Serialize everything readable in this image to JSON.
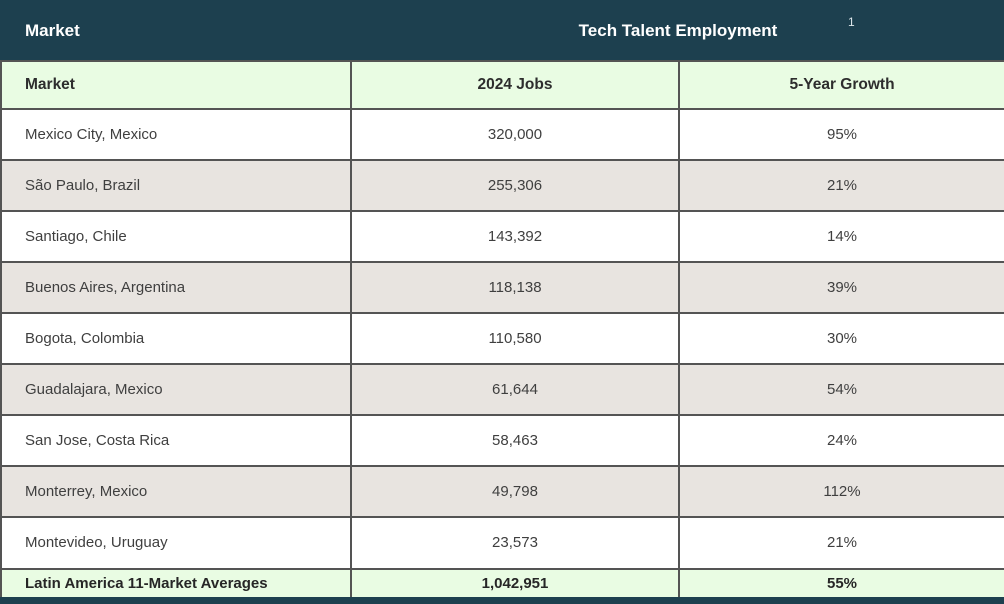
{
  "colors": {
    "header_bg": "#1d404f",
    "header_text": "#ffffff",
    "subheader_bg": "#e9fce3",
    "row_alt_bg": "#e8e4e0",
    "row_bg": "#ffffff",
    "grid_border": "#545454",
    "body_text": "#3f3f3f"
  },
  "table": {
    "header": {
      "market_label": "Market",
      "title": "Tech Talent Employment",
      "footnote_marker": "1"
    },
    "columns": [
      "Market",
      "2024 Jobs",
      "5-Year Growth"
    ],
    "rows": [
      {
        "market": "Mexico City, Mexico",
        "jobs": "320,000",
        "growth": "95%"
      },
      {
        "market": "São Paulo, Brazil",
        "jobs": "255,306",
        "growth": "21%"
      },
      {
        "market": "Santiago, Chile",
        "jobs": "143,392",
        "growth": "14%"
      },
      {
        "market": "Buenos Aires, Argentina",
        "jobs": "118,138",
        "growth": "39%"
      },
      {
        "market": "Bogota, Colombia",
        "jobs": "110,580",
        "growth": "30%"
      },
      {
        "market": "Guadalajara, Mexico",
        "jobs": "61,644",
        "growth": "54%"
      },
      {
        "market": "San Jose, Costa Rica",
        "jobs": "58,463",
        "growth": "24%"
      },
      {
        "market": "Monterrey, Mexico",
        "jobs": "49,798",
        "growth": "112%"
      },
      {
        "market": "Montevideo, Uruguay",
        "jobs": "23,573",
        "growth": "21%"
      }
    ],
    "footer": {
      "market": "Latin America 11-Market Averages",
      "jobs": "1,042,951",
      "growth": "55%"
    }
  },
  "chart_data": {
    "type": "table",
    "title": "Tech Talent Employment",
    "footnote_marker": "1",
    "columns": [
      "Market",
      "2024 Jobs",
      "5-Year Growth"
    ],
    "rows": [
      [
        "Mexico City, Mexico",
        320000,
        "95%"
      ],
      [
        "São Paulo, Brazil",
        255306,
        "21%"
      ],
      [
        "Santiago, Chile",
        143392,
        "14%"
      ],
      [
        "Buenos Aires, Argentina",
        118138,
        "39%"
      ],
      [
        "Bogota, Colombia",
        110580,
        "30%"
      ],
      [
        "Guadalajara, Mexico",
        61644,
        "54%"
      ],
      [
        "San Jose, Costa Rica",
        58463,
        "24%"
      ],
      [
        "Monterrey, Mexico",
        49798,
        "112%"
      ],
      [
        "Montevideo, Uruguay",
        23573,
        "21%"
      ]
    ],
    "summary_row": [
      "Latin America 11-Market Averages",
      1042951,
      "55%"
    ]
  }
}
